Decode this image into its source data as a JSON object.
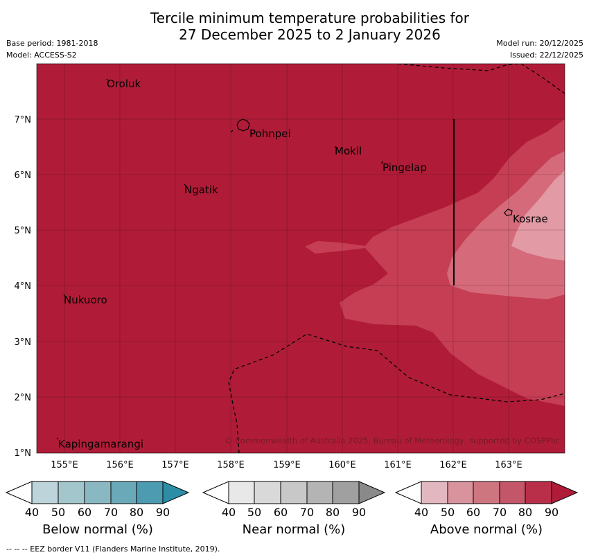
{
  "header": {
    "title_line1": "Tercile minimum temperature probabilities for",
    "title_line2": "27 December 2025 to 2 January 2026",
    "base_period": "Base period: 1981-2018",
    "model": "Model: ACCESS-S2",
    "model_run": "Model run: 20/12/2025",
    "issued": "Issued: 22/12/2025"
  },
  "map": {
    "lon_ticks": [
      "155°E",
      "156°E",
      "157°E",
      "158°E",
      "159°E",
      "160°E",
      "161°E",
      "162°E",
      "163°E"
    ],
    "lat_ticks": [
      "1°N",
      "2°N",
      "3°N",
      "4°N",
      "5°N",
      "6°N",
      "7°N"
    ],
    "places": [
      "Oroluk",
      "Pohnpei",
      "Mokil",
      "Pingelap",
      "Ngatik",
      "Kosrae",
      "Nukuoro",
      "Kapingamarangi"
    ],
    "copyright": "© Commonwealth of Australia 2025, Bureau of Meteorology, supported by COSPPac",
    "colors": {
      "above_80_90": "#b01c38",
      "above_70_80": "#c63e54",
      "above_60_70": "#d56a7a",
      "above_50_60": "#e29aa4"
    }
  },
  "legend": {
    "below": {
      "label": "Below normal (%)",
      "ticks": [
        "40",
        "50",
        "60",
        "70",
        "80",
        "90"
      ],
      "colors": [
        "#ffffff",
        "#bcd4da",
        "#a3c6cc",
        "#8ab8c2",
        "#6aaab8",
        "#4c9bb0",
        "#2b8ea6"
      ]
    },
    "near": {
      "label": "Near normal (%)",
      "ticks": [
        "40",
        "50",
        "60",
        "70",
        "80",
        "90"
      ],
      "colors": [
        "#ffffff",
        "#e8e8e8",
        "#d9d9d9",
        "#c8c8c8",
        "#b4b4b4",
        "#a0a0a0",
        "#8a8a8a"
      ]
    },
    "above": {
      "label": "Above normal (%)",
      "ticks": [
        "40",
        "50",
        "60",
        "70",
        "80",
        "90"
      ],
      "colors": [
        "#ffffff",
        "#e3b7bf",
        "#d9939d",
        "#ce7680",
        "#c4566a",
        "#b92f4a",
        "#b01c38"
      ]
    }
  },
  "footer": {
    "eez_note": "-- -- -- EEZ border V11 (Flanders Marine Institute, 2019)."
  }
}
